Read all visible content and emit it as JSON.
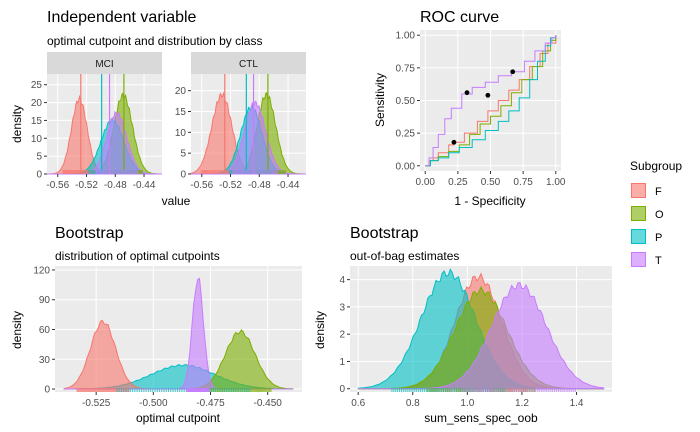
{
  "colors": {
    "F": "#F8766D",
    "O": "#7CAE00",
    "P": "#00BFC4",
    "T": "#C77CFF",
    "panel": "#EBEBEB",
    "grid": "#ffffff",
    "strip": "#D9D9D9"
  },
  "legend": {
    "title": "Subgroup",
    "items": [
      "F",
      "O",
      "P",
      "T"
    ]
  },
  "chart_data": [
    {
      "id": "iv",
      "type": "area",
      "title": "Independent variable",
      "subtitle": "optimal cutpoint and distribution by class",
      "xlabel": "value",
      "ylabel": "density",
      "xlim": [
        -0.575,
        -0.415
      ],
      "x_ticks": [
        -0.56,
        -0.52,
        -0.48,
        -0.44
      ],
      "x_tick_labels": [
        "-0.56",
        "-0.52",
        "-0.48",
        "-0.44"
      ],
      "facets": [
        {
          "strip": "MCI",
          "ylim": [
            0,
            28
          ],
          "y_ticks": [
            0,
            5,
            10,
            15,
            20,
            25
          ],
          "cutpoints": {
            "F": -0.528,
            "O": -0.468,
            "P": -0.499,
            "T": -0.488
          },
          "series": [
            {
              "name": "F",
              "mu": -0.53,
              "sd": 0.011,
              "peak": 21
            },
            {
              "name": "O",
              "mu": -0.469,
              "sd": 0.013,
              "peak": 22
            },
            {
              "name": "P",
              "mu": -0.484,
              "sd": 0.016,
              "peak": 15
            },
            {
              "name": "T",
              "mu": -0.478,
              "sd": 0.014,
              "peak": 17
            }
          ]
        },
        {
          "strip": "CTL",
          "ylim": [
            0,
            24
          ],
          "y_ticks": [
            0,
            5,
            10,
            15,
            20
          ],
          "cutpoints": {
            "F": -0.528,
            "O": -0.468,
            "P": -0.498,
            "T": -0.488
          },
          "series": [
            {
              "name": "F",
              "mu": -0.532,
              "sd": 0.014,
              "peak": 19
            },
            {
              "name": "O",
              "mu": -0.47,
              "sd": 0.013,
              "peak": 19
            },
            {
              "name": "P",
              "mu": -0.491,
              "sd": 0.015,
              "peak": 16
            },
            {
              "name": "T",
              "mu": -0.486,
              "sd": 0.015,
              "peak": 17
            }
          ]
        }
      ]
    },
    {
      "id": "roc",
      "type": "line",
      "title": "ROC curve",
      "xlabel": "1 - Specificity",
      "ylabel": "Sensitivity",
      "xlim": [
        -0.04,
        1.04
      ],
      "ylim": [
        -0.04,
        1.04
      ],
      "ticks": [
        0,
        0.25,
        0.5,
        0.75,
        1
      ],
      "tick_labels": [
        "0.00",
        "0.25",
        "0.50",
        "0.75",
        "1.00"
      ],
      "series": [
        {
          "name": "F",
          "points": [
            [
              0,
              0
            ],
            [
              0.03,
              0.04
            ],
            [
              0.06,
              0.06
            ],
            [
              0.1,
              0.1
            ],
            [
              0.18,
              0.16
            ],
            [
              0.22,
              0.18
            ],
            [
              0.3,
              0.25
            ],
            [
              0.4,
              0.34
            ],
            [
              0.48,
              0.42
            ],
            [
              0.56,
              0.5
            ],
            [
              0.64,
              0.58
            ],
            [
              0.72,
              0.66
            ],
            [
              0.8,
              0.76
            ],
            [
              0.88,
              0.86
            ],
            [
              0.94,
              0.94
            ],
            [
              1,
              1
            ]
          ]
        },
        {
          "name": "O",
          "points": [
            [
              0,
              0
            ],
            [
              0.04,
              0.04
            ],
            [
              0.1,
              0.07
            ],
            [
              0.18,
              0.11
            ],
            [
              0.26,
              0.16
            ],
            [
              0.34,
              0.24
            ],
            [
              0.42,
              0.32
            ],
            [
              0.5,
              0.38
            ],
            [
              0.58,
              0.46
            ],
            [
              0.66,
              0.56
            ],
            [
              0.74,
              0.66
            ],
            [
              0.82,
              0.76
            ],
            [
              0.9,
              0.88
            ],
            [
              0.96,
              0.96
            ],
            [
              1,
              1
            ]
          ]
        },
        {
          "name": "P",
          "points": [
            [
              0,
              0
            ],
            [
              0.04,
              0.04
            ],
            [
              0.1,
              0.06
            ],
            [
              0.18,
              0.1
            ],
            [
              0.26,
              0.14
            ],
            [
              0.36,
              0.2
            ],
            [
              0.46,
              0.27
            ],
            [
              0.56,
              0.34
            ],
            [
              0.64,
              0.42
            ],
            [
              0.72,
              0.52
            ],
            [
              0.8,
              0.66
            ],
            [
              0.86,
              0.8
            ],
            [
              0.92,
              0.92
            ],
            [
              0.96,
              0.98
            ],
            [
              1,
              1
            ]
          ]
        },
        {
          "name": "T",
          "points": [
            [
              0,
              0
            ],
            [
              0.03,
              0.06
            ],
            [
              0.06,
              0.14
            ],
            [
              0.1,
              0.24
            ],
            [
              0.15,
              0.36
            ],
            [
              0.2,
              0.44
            ],
            [
              0.28,
              0.55
            ],
            [
              0.36,
              0.6
            ],
            [
              0.46,
              0.64
            ],
            [
              0.56,
              0.69
            ],
            [
              0.66,
              0.72
            ],
            [
              0.76,
              0.8
            ],
            [
              0.84,
              0.88
            ],
            [
              0.92,
              0.94
            ],
            [
              0.97,
              0.98
            ],
            [
              1,
              1
            ]
          ]
        }
      ],
      "cutpoint_markers": [
        {
          "series": "F",
          "x": 0.22,
          "y": 0.18
        },
        {
          "series": "T",
          "x": 0.32,
          "y": 0.56
        },
        {
          "series": "O",
          "x": 0.48,
          "y": 0.54
        },
        {
          "series": "T",
          "x": 0.67,
          "y": 0.72
        }
      ]
    },
    {
      "id": "boot-cut",
      "type": "area",
      "title": "Bootstrap",
      "subtitle": "distribution of optimal cutpoints",
      "xlabel": "optimal cutpoint",
      "ylabel": "density",
      "xlim": [
        -0.543,
        -0.435
      ],
      "ylim": [
        -3,
        124
      ],
      "x_ticks": [
        -0.525,
        -0.5,
        -0.475,
        -0.45
      ],
      "x_tick_labels": [
        "-0.525",
        "-0.500",
        "-0.475",
        "-0.450"
      ],
      "y_ticks": [
        0,
        30,
        60,
        90,
        120
      ],
      "series": [
        {
          "name": "F",
          "mu": -0.522,
          "sd": 0.0055,
          "peak": 68
        },
        {
          "name": "O",
          "mu": -0.462,
          "sd": 0.0065,
          "peak": 58
        },
        {
          "name": "P",
          "mu": -0.487,
          "sd": 0.014,
          "peak": 24
        },
        {
          "name": "T",
          "mu": -0.4805,
          "sd": 0.0024,
          "peak": 112
        }
      ]
    },
    {
      "id": "boot-oob",
      "type": "area",
      "title": "Bootstrap",
      "subtitle": "out-of-bag estimates",
      "xlabel": "sum_sens_spec_oob",
      "ylabel": "density",
      "xlim": [
        0.57,
        1.53
      ],
      "ylim": [
        -0.12,
        4.5
      ],
      "x_ticks": [
        0.6,
        0.8,
        1.0,
        1.2,
        1.4
      ],
      "x_tick_labels": [
        "0.6",
        "0.8",
        "1.0",
        "1.2",
        "1.4"
      ],
      "y_ticks": [
        0,
        1,
        2,
        3,
        4
      ],
      "series": [
        {
          "name": "F",
          "mu": 1.04,
          "sd": 0.085,
          "peak": 4.1
        },
        {
          "name": "O",
          "mu": 1.05,
          "sd": 0.095,
          "peak": 3.6
        },
        {
          "name": "P",
          "mu": 0.93,
          "sd": 0.1,
          "peak": 4.25
        },
        {
          "name": "T",
          "mu": 1.19,
          "sd": 0.1,
          "peak": 3.8
        }
      ]
    }
  ]
}
